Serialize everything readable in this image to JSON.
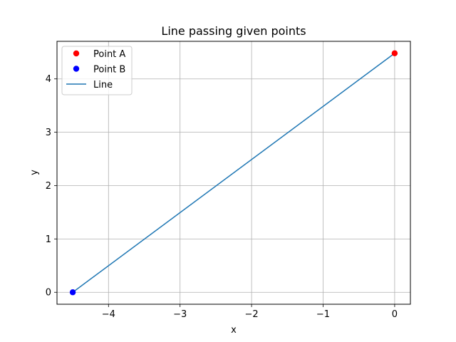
{
  "chart_data": {
    "type": "line",
    "title": "Line passing given points",
    "xlabel": "x",
    "ylabel": "y",
    "xlim": [
      -4.72,
      0.22
    ],
    "ylim": [
      -0.224,
      4.704
    ],
    "xticks": [
      -4,
      -3,
      -2,
      -1,
      0
    ],
    "xtick_labels": [
      "−4",
      "−3",
      "−2",
      "−1",
      "0"
    ],
    "yticks": [
      0,
      1,
      2,
      3,
      4
    ],
    "ytick_labels": [
      "0",
      "1",
      "2",
      "3",
      "4"
    ],
    "grid": true,
    "legend_position": "top-left",
    "series": [
      {
        "name": "Point A",
        "kind": "point",
        "x": [
          0
        ],
        "y": [
          4.48
        ],
        "color": "#ff0000"
      },
      {
        "name": "Point B",
        "kind": "point",
        "x": [
          -4.5
        ],
        "y": [
          0
        ],
        "color": "#0000ff"
      },
      {
        "name": "Line",
        "kind": "line",
        "x": [
          -4.5,
          0
        ],
        "y": [
          0,
          4.48
        ],
        "color": "#1f77b4"
      }
    ]
  }
}
